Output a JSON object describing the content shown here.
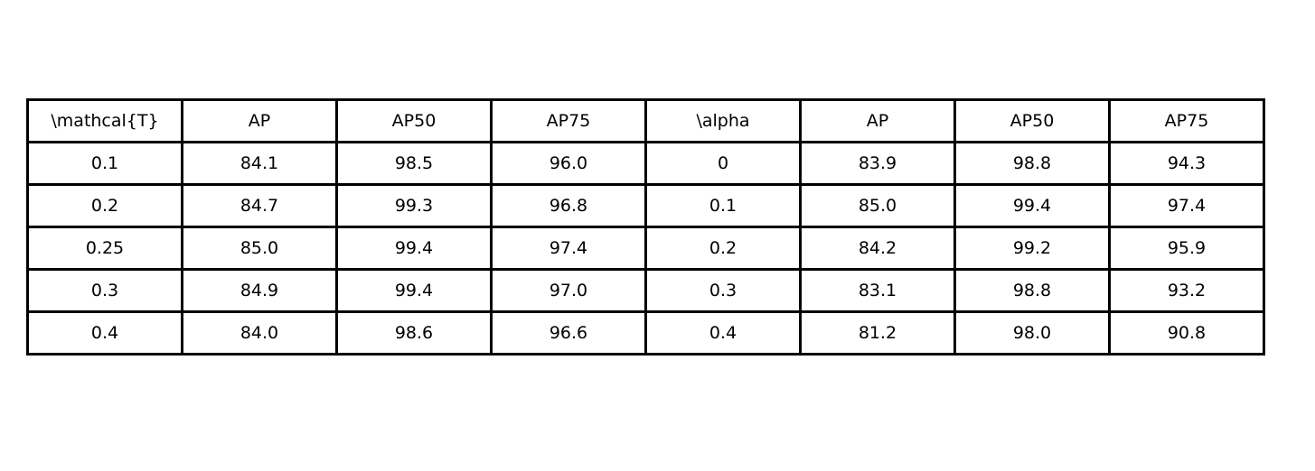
{
  "chart_data": {
    "type": "table",
    "columns": [
      "\\mathcal{T}",
      "AP",
      "AP50",
      "AP75",
      "\\alpha",
      "AP",
      "AP50",
      "AP75"
    ],
    "rows": [
      [
        "0.1",
        "84.1",
        "98.5",
        "96.0",
        "0",
        "83.9",
        "98.8",
        "94.3"
      ],
      [
        "0.2",
        "84.7",
        "99.3",
        "96.8",
        "0.1",
        "85.0",
        "99.4",
        "97.4"
      ],
      [
        "0.25",
        "85.0",
        "99.4",
        "97.4",
        "0.2",
        "84.2",
        "99.2",
        "95.9"
      ],
      [
        "0.3",
        "84.9",
        "99.4",
        "97.0",
        "0.3",
        "83.1",
        "98.8",
        "93.2"
      ],
      [
        "0.4",
        "84.0",
        "98.6",
        "96.6",
        "0.4",
        "81.2",
        "98.0",
        "90.8"
      ]
    ]
  }
}
